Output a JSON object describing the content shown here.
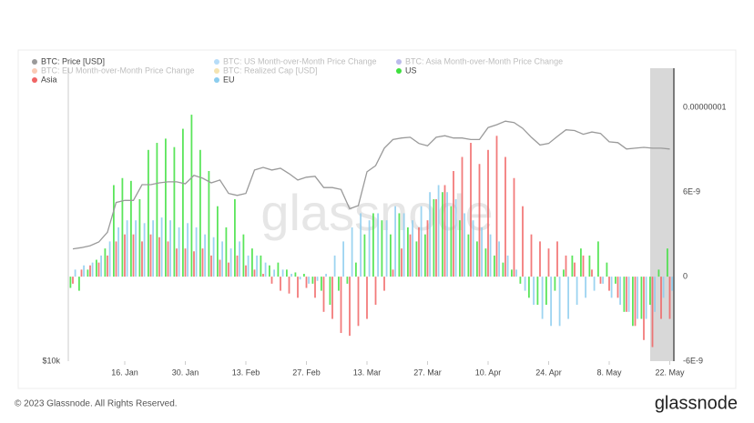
{
  "chart_data": {
    "type": "bar-line",
    "watermark": "glassnode",
    "footer": "© 2023 Glassnode. All Rights Reserved.",
    "logo": "glassnode",
    "categories": [
      null,
      null,
      null,
      null,
      null,
      null,
      "16. Jan",
      null,
      null,
      null,
      null,
      null,
      null,
      "30. Jan",
      null,
      null,
      null,
      null,
      null,
      null,
      "13. Feb",
      null,
      null,
      null,
      null,
      null,
      null,
      "27. Feb",
      null,
      null,
      null,
      null,
      null,
      null,
      "13. Mar",
      null,
      null,
      null,
      null,
      null,
      null,
      "27. Mar",
      null,
      null,
      null,
      null,
      null,
      null,
      "10. Apr",
      null,
      null,
      null,
      null,
      null,
      null,
      "24. Apr",
      null,
      null,
      null,
      null,
      null,
      null,
      "8. May",
      null,
      null,
      null,
      null,
      null,
      null,
      "22. May"
    ],
    "ylim": [
      10000,
      39000
    ],
    "ylog": true,
    "yticks": [
      {
        "value": 10000,
        "label": "$10k"
      }
    ],
    "y2lim": [
      -6e-09,
      1.48e-08
    ],
    "y2ticks": [
      {
        "value": 1.2e-08,
        "label": "0.00000001"
      },
      {
        "value": 6e-09,
        "label": "6E-9"
      },
      0,
      {
        "value": -6e-09,
        "label": "-6E-9"
      }
    ],
    "series": [
      {
        "name": "BTC: Price [USD]",
        "color": "#9a9a9a",
        "kind": "line",
        "values": [
          16850,
          16950,
          17100,
          17400,
          18200,
          20900,
          21100,
          21100,
          22700,
          22700,
          22900,
          23000,
          23000,
          22800,
          23700,
          23400,
          22900,
          23200,
          21800,
          21600,
          21800,
          24300,
          24600,
          24300,
          24500,
          23900,
          23200,
          23500,
          23600,
          22400,
          22400,
          22200,
          20300,
          20600,
          24100,
          24800,
          26900,
          28000,
          28200,
          28300,
          27500,
          27200,
          28300,
          28500,
          28200,
          28200,
          28000,
          28000,
          29600,
          30000,
          30500,
          30300,
          29500,
          28300,
          27300,
          27500,
          28400,
          29300,
          29200,
          28700,
          29000,
          28800,
          27700,
          27600,
          26800,
          26900,
          27000,
          26900,
          26900,
          26800
        ]
      },
      {
        "name": "US",
        "color": "#3ee03e",
        "kind": "bar",
        "axis": "y2",
        "values": [
          -8e-10,
          -1e-09,
          5e-10,
          1.2e-09,
          2e-09,
          6.5e-09,
          7e-09,
          6.8e-09,
          5.5e-09,
          9e-09,
          9.5e-09,
          9.8e-09,
          9.2e-09,
          1.05e-08,
          1.15e-08,
          9e-09,
          7.5e-09,
          5e-09,
          3.5e-09,
          5.5e-09,
          3e-09,
          2e-09,
          1.5e-09,
          8e-10,
          1e-09,
          5e-10,
          3e-10,
          2e-10,
          -5e-10,
          -1e-09,
          -2e-09,
          -1e-09,
          -5e-10,
          1e-09,
          3e-09,
          4.5e-09,
          4e-09,
          3e-09,
          4.5e-09,
          3.5e-09,
          2.5e-09,
          3e-09,
          5.5e-09,
          6e-09,
          5e-09,
          4e-09,
          3e-09,
          2.5e-09,
          2e-09,
          1.5e-09,
          1e-09,
          5e-10,
          -5e-10,
          -1.5e-09,
          -2e-09,
          -2e-09,
          -1e-09,
          5e-10,
          1.5e-09,
          2e-09,
          1.5e-09,
          2.5e-09,
          1e-09,
          -5e-10,
          -2.5e-09,
          -3.5e-09,
          -3e-09,
          -2e-09,
          5e-10,
          2e-09
        ]
      },
      {
        "name": "Asia",
        "color": "#f06464",
        "kind": "bar",
        "axis": "y2",
        "values": [
          -5e-10,
          5e-10,
          8e-10,
          1e-09,
          1.5e-09,
          2.5e-09,
          3e-09,
          3e-09,
          2.5e-09,
          3e-09,
          2.8e-09,
          2.5e-09,
          2e-09,
          2e-09,
          1.8e-09,
          2e-09,
          1.5e-09,
          1.2e-09,
          1e-09,
          1.5e-09,
          8e-10,
          5e-10,
          2e-10,
          -5e-10,
          -1e-09,
          -1.2e-09,
          -1.5e-09,
          -8e-10,
          -1.5e-09,
          -2.5e-09,
          -3e-09,
          -4e-09,
          -4.2e-09,
          -3.5e-09,
          -3e-09,
          -2e-09,
          -1e-09,
          5e-10,
          2e-09,
          3e-09,
          3.5e-09,
          4e-09,
          5.5e-09,
          6.5e-09,
          7.5e-09,
          8.5e-09,
          9.5e-09,
          8e-09,
          9e-09,
          1e-08,
          8.5e-09,
          7e-09,
          5e-09,
          3e-09,
          2.5e-09,
          2e-09,
          2.5e-09,
          1.5e-09,
          1e-09,
          1.5e-09,
          5e-10,
          -5e-10,
          -1e-09,
          -1.5e-09,
          -2.5e-09,
          -3.5e-09,
          -4.5e-09,
          -5e-09,
          -3e-09,
          -3e-09
        ]
      },
      {
        "name": "EU",
        "color": "#8ccdee",
        "kind": "bar",
        "axis": "y2",
        "values": [
          5e-10,
          8e-10,
          1e-09,
          1.5e-09,
          2.5e-09,
          3.5e-09,
          4e-09,
          4e-09,
          3.8e-09,
          4e-09,
          4.2e-09,
          4e-09,
          3.5e-09,
          3.8e-09,
          3.5e-09,
          3e-09,
          2.8e-09,
          2.5e-09,
          2e-09,
          2.5e-09,
          1.5e-09,
          1.5e-09,
          1e-09,
          5e-10,
          5e-10,
          2e-10,
          -2e-10,
          -5e-10,
          -3e-10,
          2e-10,
          1.5e-09,
          2.5e-09,
          3.5e-09,
          4.5e-09,
          4e-09,
          4.5e-09,
          4e-09,
          5e-09,
          4.5e-09,
          4e-09,
          5e-09,
          6e-09,
          6.5e-09,
          6e-09,
          5.5e-09,
          4.5e-09,
          4e-09,
          3.5e-09,
          3e-09,
          2.5e-09,
          1.5e-09,
          5e-10,
          -1e-09,
          -2e-09,
          -3e-09,
          -3.5e-09,
          -3.5e-09,
          -3e-09,
          -2e-09,
          -1.5e-09,
          -1e-09,
          -5e-10,
          -1.5e-09,
          -2e-09,
          -2.5e-09,
          -3e-09,
          -3e-09,
          -2.5e-09,
          -1.5e-09,
          -1e-09
        ]
      }
    ],
    "hidden_series": [
      {
        "name": "BTC: US Month-over-Month Price Change",
        "color": "#2f9ceb"
      },
      {
        "name": "BTC: Asia Month-over-Month Price Change",
        "color": "#3b3bc6"
      },
      {
        "name": "BTC: EU Month-over-Month Price Change",
        "color": "#f26b2f"
      },
      {
        "name": "BTC: Realized Cap [USD]",
        "color": "#e0b020"
      }
    ]
  }
}
